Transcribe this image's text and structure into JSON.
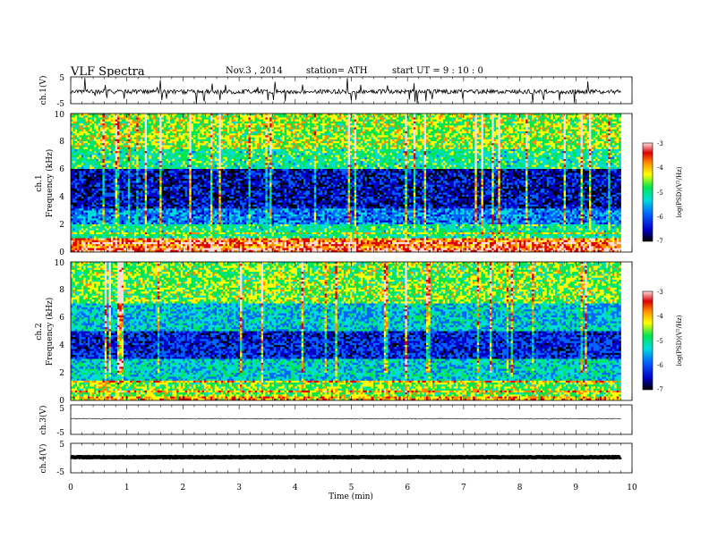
{
  "header": {
    "title": "VLF  Spectra",
    "date": "Nov.3   , 2014",
    "station": "station= ATH",
    "start": "start  UT  =   9 : 10 : 0"
  },
  "chart_data": {
    "type": "heatmap",
    "xlabel": "Time  (min)",
    "xlim": [
      0,
      10
    ],
    "xticks": [
      "0",
      "1",
      "2",
      "3",
      "4",
      "5",
      "6",
      "7",
      "8",
      "9",
      "10"
    ],
    "data_end_min": 9.8,
    "panels": [
      {
        "id": "ch1-waveform",
        "type": "line",
        "ylabel": "ch.1(V)",
        "ylim": [
          -5,
          5
        ],
        "yticks": [
          "5",
          "-5"
        ],
        "baseline_v": -0.5,
        "noise_amplitude_v": 0.8
      },
      {
        "id": "ch1-spectrogram",
        "type": "heatmap",
        "ylabel_channel": "ch.1",
        "ylabel": "Frequency  (kHz)",
        "ylim": [
          0,
          10
        ],
        "yticks": [
          "0",
          "2",
          "4",
          "6",
          "8",
          "10"
        ],
        "colorbar_label": "log(PSD)(V²/Hz)",
        "colorbar_range": [
          -7,
          -3
        ],
        "colorbar_ticks": [
          "-3",
          "-4",
          "-5",
          "-6",
          "-7"
        ],
        "bands": [
          {
            "from_khz": 0,
            "to_khz": 0.3,
            "log_psd": -3.3
          },
          {
            "from_khz": 0.3,
            "to_khz": 1.0,
            "log_psd": -3.7
          },
          {
            "from_khz": 1.0,
            "to_khz": 2.0,
            "log_psd": -5.0
          },
          {
            "from_khz": 2.0,
            "to_khz": 3.2,
            "log_psd": -5.8
          },
          {
            "from_khz": 3.2,
            "to_khz": 6.0,
            "log_psd": -6.5
          },
          {
            "from_khz": 6.0,
            "to_khz": 7.5,
            "log_psd": -5.0
          },
          {
            "from_khz": 7.5,
            "to_khz": 10.0,
            "log_psd": -4.5
          }
        ]
      },
      {
        "id": "ch2-spectrogram",
        "type": "heatmap",
        "ylabel_channel": "ch.2",
        "ylabel": "Frequency  (kHz)",
        "ylim": [
          0,
          10
        ],
        "yticks": [
          "0",
          "2",
          "4",
          "6",
          "8",
          "10"
        ],
        "colorbar_label": "log(PSD)(V²/Hz)",
        "colorbar_range": [
          -7,
          -3
        ],
        "colorbar_ticks": [
          "-3",
          "-4",
          "-5",
          "-6",
          "-7"
        ],
        "bands": [
          {
            "from_khz": 0,
            "to_khz": 0.3,
            "log_psd": -4.0
          },
          {
            "from_khz": 0.3,
            "to_khz": 1.5,
            "log_psd": -4.6
          },
          {
            "from_khz": 1.5,
            "to_khz": 3.0,
            "log_psd": -5.3
          },
          {
            "from_khz": 3.0,
            "to_khz": 5.0,
            "log_psd": -6.3
          },
          {
            "from_khz": 5.0,
            "to_khz": 7.0,
            "log_psd": -5.4
          },
          {
            "from_khz": 7.0,
            "to_khz": 10.0,
            "log_psd": -4.6
          }
        ]
      },
      {
        "id": "ch3-waveform",
        "type": "line",
        "ylabel": "ch.3(V)",
        "ylim": [
          -5,
          5
        ],
        "yticks": [
          "5",
          "-5"
        ],
        "baseline_v": 0.3,
        "noise_amplitude_v": 0.15
      },
      {
        "id": "ch4-waveform",
        "type": "line",
        "ylabel": "ch.4(V)",
        "ylim": [
          -5,
          5
        ],
        "yticks": [
          "5",
          "-5"
        ],
        "baseline_v": 0.3,
        "noise_amplitude_v": 0.1
      }
    ]
  },
  "colors": {
    "colormap": [
      "#000000",
      "#0000c8",
      "#0064ff",
      "#00dcdc",
      "#00e650",
      "#ffff00",
      "#ff8c00",
      "#dc0000",
      "#ffdcdc"
    ]
  }
}
